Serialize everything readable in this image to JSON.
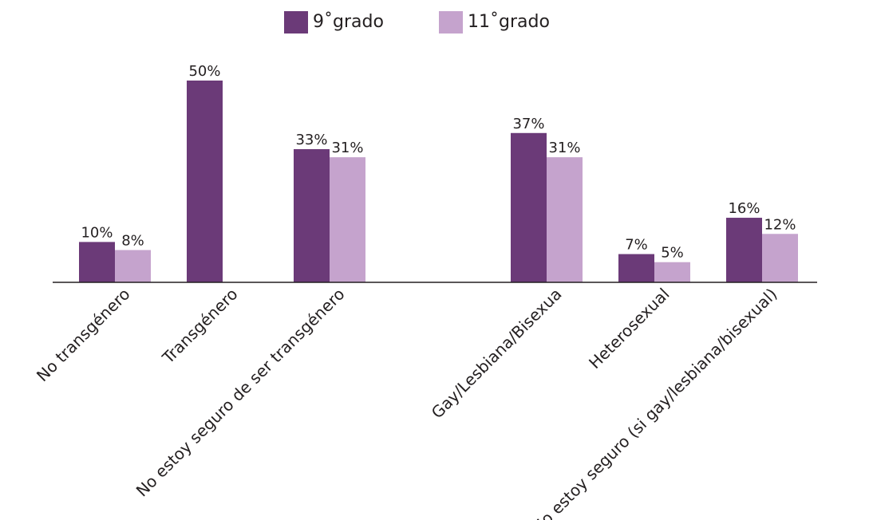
{
  "chart_data": {
    "type": "bar",
    "categories": [
      "No transgénero",
      "Transgénero",
      "No estoy seguro de ser transgénero",
      "",
      "Gay/Lesbiana/Bisexua",
      "Heterosexual",
      "No estoy seguro (si gay/lesbiana/bisexual)"
    ],
    "series": [
      {
        "name": "9˚grado",
        "color": "#6b3a78",
        "values": [
          10,
          50,
          33,
          null,
          37,
          7,
          16
        ],
        "labels": [
          "10%",
          "50%",
          "33%",
          "",
          "37%",
          "7%",
          "16%"
        ]
      },
      {
        "name": "11˚grado",
        "color": "#c5a3cd",
        "values": [
          8,
          null,
          31,
          null,
          31,
          5,
          12
        ],
        "labels": [
          "8%",
          "",
          "31%",
          "",
          "31%",
          "5%",
          "12%"
        ]
      }
    ],
    "ylim": [
      0,
      50
    ],
    "grid": false,
    "legend": "top-center"
  }
}
